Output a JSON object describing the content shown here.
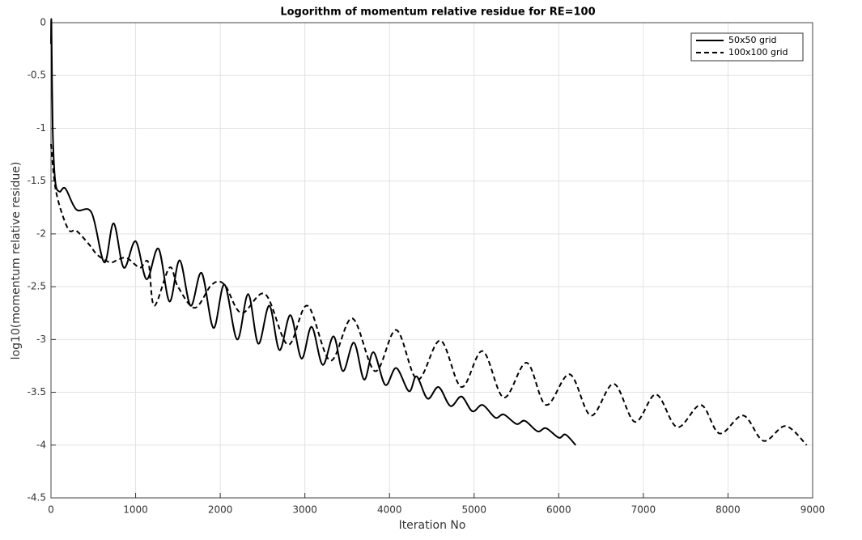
{
  "chart_data": {
    "type": "line",
    "title": "Logorithm of momentum relative residue for RE=100",
    "xlabel": "Iteration No",
    "ylabel": "log10(momentum relative residue)",
    "xlim": [
      0,
      9000
    ],
    "ylim": [
      -4.5,
      0
    ],
    "xticks": [
      0,
      1000,
      2000,
      3000,
      4000,
      5000,
      6000,
      7000,
      8000,
      9000
    ],
    "yticks": [
      -4.5,
      -4,
      -3.5,
      -3,
      -2.5,
      -2,
      -1.5,
      -1,
      -0.5,
      0
    ],
    "grid": true,
    "legend": "top-right",
    "series": [
      {
        "name": "50x50 grid",
        "color": "#000000",
        "dash": "solid",
        "x": [
          0,
          5,
          20,
          50,
          100,
          170,
          300,
          480,
          630,
          740,
          860,
          1000,
          1130,
          1270,
          1400,
          1520,
          1650,
          1780,
          1920,
          2050,
          2200,
          2330,
          2450,
          2580,
          2700,
          2830,
          2960,
          3080,
          3210,
          3340,
          3450,
          3580,
          3700,
          3810,
          3950,
          4080,
          4230,
          4320,
          4450,
          4580,
          4720,
          4850,
          4980,
          5100,
          5250,
          5350,
          5500,
          5600,
          5750,
          5850,
          6000,
          6080,
          6200
        ],
        "values": [
          -0.2,
          0,
          -1.0,
          -1.5,
          -1.6,
          -1.57,
          -1.77,
          -1.8,
          -2.27,
          -1.9,
          -2.32,
          -2.07,
          -2.43,
          -2.14,
          -2.64,
          -2.25,
          -2.68,
          -2.37,
          -2.89,
          -2.48,
          -3.0,
          -2.57,
          -3.04,
          -2.68,
          -3.1,
          -2.77,
          -3.18,
          -2.88,
          -3.24,
          -2.97,
          -3.3,
          -3.03,
          -3.38,
          -3.12,
          -3.43,
          -3.27,
          -3.49,
          -3.35,
          -3.56,
          -3.45,
          -3.63,
          -3.54,
          -3.68,
          -3.62,
          -3.74,
          -3.71,
          -3.8,
          -3.77,
          -3.87,
          -3.84,
          -3.93,
          -3.9,
          -4.0
        ]
      },
      {
        "name": "100x100 grid",
        "color": "#000000",
        "dash": "dashed",
        "x": [
          0,
          60,
          200,
          300,
          450,
          550,
          700,
          800,
          900,
          1050,
          1150,
          1220,
          1400,
          1500,
          1700,
          1900,
          2050,
          2250,
          2530,
          2800,
          3030,
          3300,
          3560,
          3830,
          4080,
          4330,
          4600,
          4850,
          5100,
          5350,
          5620,
          5850,
          6130,
          6380,
          6650,
          6900,
          7150,
          7400,
          7680,
          7900,
          8180,
          8420,
          8680,
          8930
        ],
        "values": [
          -1.15,
          -1.6,
          -1.95,
          -1.97,
          -2.1,
          -2.2,
          -2.27,
          -2.24,
          -2.23,
          -2.32,
          -2.27,
          -2.68,
          -2.32,
          -2.5,
          -2.7,
          -2.48,
          -2.48,
          -2.75,
          -2.57,
          -3.05,
          -2.68,
          -3.2,
          -2.8,
          -3.3,
          -2.91,
          -3.38,
          -3.01,
          -3.45,
          -3.11,
          -3.55,
          -3.22,
          -3.62,
          -3.33,
          -3.72,
          -3.42,
          -3.78,
          -3.52,
          -3.83,
          -3.62,
          -3.89,
          -3.72,
          -3.96,
          -3.82,
          -4.0
        ]
      }
    ]
  }
}
